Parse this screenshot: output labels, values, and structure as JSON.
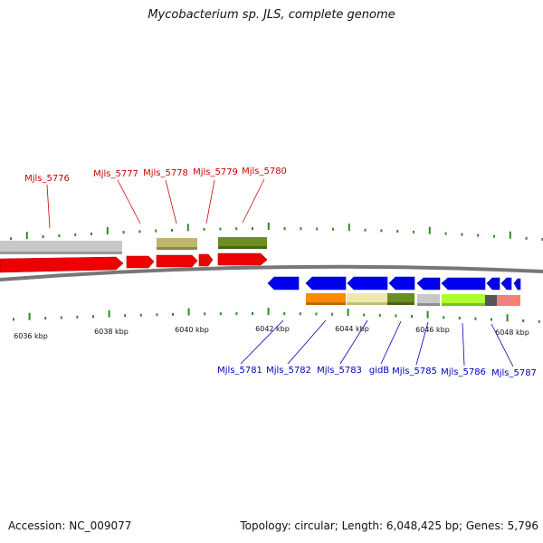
{
  "title": "Mycobacterium sp. JLS, complete genome",
  "footer": {
    "accession": "Accession: NC_009077",
    "summary": "Topology: circular; Length: 6,048,425 bp; Genes: 5,796"
  },
  "colors": {
    "top_labels": "#cc0000",
    "bottom_labels": "#0000bb",
    "ticks": "#2e8b22",
    "backbone": "#777777"
  },
  "kbp_labels": [
    "6036 kbp",
    "6038 kbp",
    "6040 kbp",
    "6042 kbp",
    "6044 kbp",
    "6046 kbp",
    "6048 kbp"
  ],
  "top_genes": [
    "Mjls_5776",
    "Mjls_5777",
    "Mjls_5778",
    "Mjls_5779",
    "Mjls_5780"
  ],
  "bottom_genes": [
    "Mjls_5781",
    "Mjls_5782",
    "Mjls_5783",
    "gidB",
    "Mjls_5785",
    "Mjls_5786",
    "Mjls_5787"
  ]
}
